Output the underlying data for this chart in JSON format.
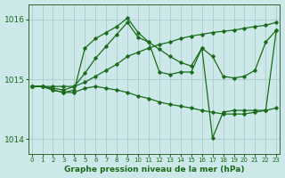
{
  "xlabel": "Graphe pression niveau de la mer (hPa)",
  "background_color": "#cce8e8",
  "grid_color": "#aacccc",
  "line_color": "#1a6b1a",
  "ylim": [
    1013.75,
    1016.25
  ],
  "xlim": [
    -0.3,
    23.3
  ],
  "yticks": [
    1014,
    1015,
    1016
  ],
  "xticks": [
    0,
    1,
    2,
    3,
    4,
    5,
    6,
    7,
    8,
    9,
    10,
    11,
    12,
    13,
    14,
    15,
    16,
    17,
    18,
    19,
    20,
    21,
    22,
    23
  ],
  "series": [
    [
      1014.88,
      1014.88,
      1014.88,
      1014.88,
      1014.88,
      1014.95,
      1015.05,
      1015.15,
      1015.25,
      1015.38,
      1015.45,
      1015.52,
      1015.58,
      1015.62,
      1015.68,
      1015.72,
      1015.75,
      1015.78,
      1015.8,
      1015.82,
      1015.85,
      1015.88,
      1015.9,
      1015.95
    ],
    [
      1014.88,
      1014.88,
      1014.85,
      1014.82,
      1014.88,
      1015.1,
      1015.35,
      1015.55,
      1015.75,
      1015.95,
      1015.7,
      1015.62,
      1015.5,
      1015.38,
      1015.28,
      1015.22,
      1015.52,
      1015.38,
      1015.05,
      1015.02,
      1015.05,
      1015.15,
      1015.62,
      1015.82
    ],
    [
      1014.88,
      1014.88,
      1014.82,
      1014.78,
      1014.78,
      1014.85,
      1014.88,
      1014.85,
      1014.82,
      1014.78,
      1014.72,
      1014.68,
      1014.62,
      1014.58,
      1014.55,
      1014.52,
      1014.48,
      1014.45,
      1014.42,
      1014.42,
      1014.42,
      1014.45,
      1014.48,
      1014.52
    ],
    [
      1014.88,
      1014.88,
      1014.82,
      1014.78,
      1014.82,
      1015.52,
      1015.68,
      1015.78,
      1015.88,
      1016.02,
      1015.78,
      1015.62,
      1015.12,
      1015.08,
      1015.12,
      1015.12,
      1015.52,
      1014.02,
      1014.45,
      1014.48,
      1014.48,
      1014.48,
      1014.48,
      1015.82
    ]
  ]
}
